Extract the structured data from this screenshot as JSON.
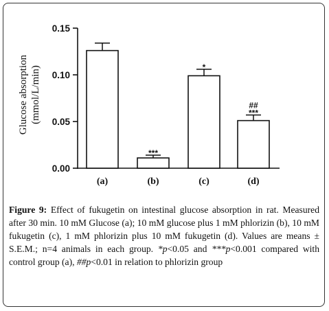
{
  "chart_data": {
    "type": "bar",
    "categories": [
      "(a)",
      "(b)",
      "(c)",
      "(d)"
    ],
    "values": [
      0.126,
      0.011,
      0.099,
      0.051
    ],
    "errors": [
      0.008,
      0.003,
      0.007,
      0.006
    ],
    "significance": [
      "",
      "***",
      "*",
      "##\n***"
    ],
    "ylabel_line1": "Glucose absorption",
    "ylabel_line2": "(mmol/L/min)",
    "ylim": [
      0,
      0.15
    ],
    "yticks": [
      0.0,
      0.05,
      0.1,
      0.15
    ],
    "ytick_labels": [
      "0.00",
      "0.05",
      "0.10",
      "0.15"
    ],
    "grid": false
  },
  "caption": {
    "label": "Figure 9:",
    "text1": " Effect of fukugetin on intestinal glucose absorption in rat. Measured after 30 min. 10 mM Glucose (a); 10 mM glucose plus 1 mM phlorizin (b), 10 mM fukugetin (c), 1 mM phlorizin plus 10 mM fukugetin (d). Values are means ± S.E.M.; n=4 animals in each group. ",
    "sig1_symbol": "*p",
    "sig1_text": "<0.05 and ",
    "sig2_symbol": "***p",
    "sig2_text": "<0.001 compared with control group (a), ",
    "sig3_symbol": "##p",
    "sig3_text": "<0.01 in relation to phlorizin group"
  }
}
